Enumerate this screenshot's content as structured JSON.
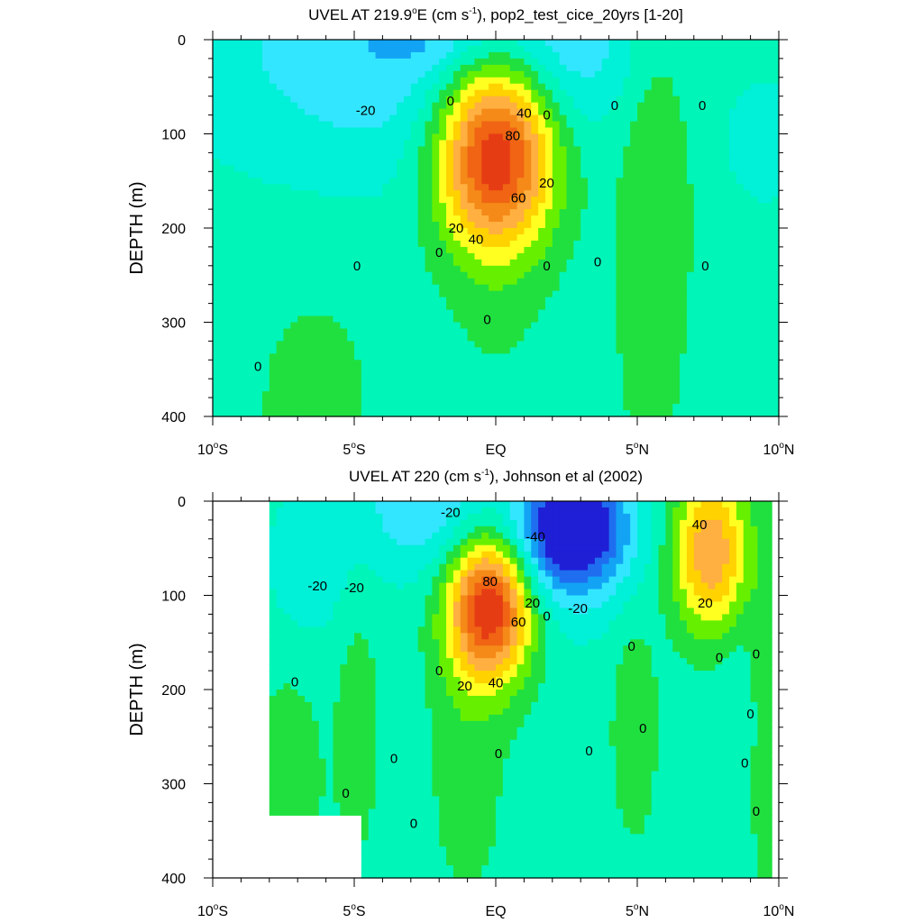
{
  "chart_data": [
    {
      "type": "heatmap",
      "title_main": "UVEL AT 219.9",
      "title_sup": "o",
      "title_mid": "E (cm s",
      "title_unit_sup": "-1",
      "title_end": "), pop2_test_cice_20yrs [1-20]",
      "ylabel": "DEPTH (m)",
      "xlim": [
        -10,
        10
      ],
      "ylim": [
        0,
        400
      ],
      "y_reversed": true,
      "xticks": [
        {
          "value": -10,
          "num": "10",
          "deg": "o",
          "hem": "S"
        },
        {
          "value": -5,
          "num": "5",
          "deg": "o",
          "hem": "S"
        },
        {
          "value": 0,
          "num": "EQ",
          "deg": "",
          "hem": ""
        },
        {
          "value": 5,
          "num": "5",
          "deg": "o",
          "hem": "N"
        },
        {
          "value": 10,
          "num": "10",
          "deg": "o",
          "hem": "N"
        }
      ],
      "yticks": [
        0,
        100,
        200,
        300,
        400
      ],
      "contour_interval": 10,
      "contour_labels": [
        {
          "text": "-20",
          "x": -4.6,
          "y": 75
        },
        {
          "text": "0",
          "x": -1.6,
          "y": 65
        },
        {
          "text": "40",
          "x": 1.0,
          "y": 78
        },
        {
          "text": "0",
          "x": 1.8,
          "y": 80
        },
        {
          "text": "80",
          "x": 0.6,
          "y": 102
        },
        {
          "text": "20",
          "x": 1.8,
          "y": 152
        },
        {
          "text": "60",
          "x": 0.8,
          "y": 168
        },
        {
          "text": "20",
          "x": -1.4,
          "y": 200
        },
        {
          "text": "40",
          "x": -0.7,
          "y": 212
        },
        {
          "text": "0",
          "x": -2.0,
          "y": 226
        },
        {
          "text": "0",
          "x": 1.8,
          "y": 240
        },
        {
          "text": "0",
          "x": -4.9,
          "y": 240
        },
        {
          "text": "0",
          "x": 3.6,
          "y": 236
        },
        {
          "text": "0",
          "x": 7.4,
          "y": 240
        },
        {
          "text": "0",
          "x": 4.2,
          "y": 70
        },
        {
          "text": "0",
          "x": 7.3,
          "y": 70
        },
        {
          "text": "0",
          "x": -0.3,
          "y": 297
        },
        {
          "text": "0",
          "x": -8.4,
          "y": 347
        }
      ],
      "sources": [
        {
          "x": 0.0,
          "y": 120,
          "amp": 92,
          "sx": 1.45,
          "sy": 72
        },
        {
          "x": -3.5,
          "y": 5,
          "amp": -24,
          "sx": 5.0,
          "sy": 100
        },
        {
          "x": 2.5,
          "y": 5,
          "amp": -14,
          "sx": 1.8,
          "sy": 55
        },
        {
          "x": -2.0,
          "y": 0,
          "amp": -8,
          "sx": 1.5,
          "sy": 25
        },
        {
          "x": 9.5,
          "y": 110,
          "amp": -12,
          "sx": 0.9,
          "sy": 45
        },
        {
          "x": 5.6,
          "y": 130,
          "amp": 14,
          "sx": 0.9,
          "sy": 130
        },
        {
          "x": 5.4,
          "y": 380,
          "amp": 5,
          "sx": 1.2,
          "sy": 170
        },
        {
          "x": -6.4,
          "y": 390,
          "amp": 8,
          "sx": 1.8,
          "sy": 110
        },
        {
          "x": 0.0,
          "y": 320,
          "amp": 4,
          "sx": 1.4,
          "sy": 90
        }
      ],
      "base": -5
    },
    {
      "type": "heatmap",
      "title_main": "UVEL AT 220 (cm s",
      "title_unit_sup": "-1",
      "title_end": "), Johnson et al (2002)",
      "ylabel": "DEPTH (m)",
      "xlim": [
        -10,
        10
      ],
      "ylim": [
        0,
        400
      ],
      "y_reversed": true,
      "data_xlim": [
        -8,
        10
      ],
      "xticks": [
        {
          "value": -10,
          "num": "10",
          "deg": "o",
          "hem": "S"
        },
        {
          "value": -5,
          "num": "5",
          "deg": "o",
          "hem": "S"
        },
        {
          "value": 0,
          "num": "EQ",
          "deg": "",
          "hem": ""
        },
        {
          "value": 5,
          "num": "5",
          "deg": "o",
          "hem": "N"
        },
        {
          "value": 10,
          "num": "10",
          "deg": "o",
          "hem": "N"
        }
      ],
      "yticks": [
        0,
        100,
        200,
        300,
        400
      ],
      "contour_interval": 10,
      "contour_labels": [
        {
          "text": "-20",
          "x": -1.6,
          "y": 12
        },
        {
          "text": "-40",
          "x": 1.4,
          "y": 38
        },
        {
          "text": "40",
          "x": 7.2,
          "y": 25
        },
        {
          "text": "-20",
          "x": -6.3,
          "y": 90
        },
        {
          "text": "-20",
          "x": -5.0,
          "y": 92
        },
        {
          "text": "80",
          "x": -0.2,
          "y": 85
        },
        {
          "text": "20",
          "x": 1.3,
          "y": 108
        },
        {
          "text": "60",
          "x": 0.8,
          "y": 128
        },
        {
          "text": "-20",
          "x": 2.9,
          "y": 114
        },
        {
          "text": "20",
          "x": 7.4,
          "y": 108
        },
        {
          "text": "0",
          "x": 1.8,
          "y": 122
        },
        {
          "text": "0",
          "x": 4.8,
          "y": 154
        },
        {
          "text": "0",
          "x": 7.9,
          "y": 166
        },
        {
          "text": "0",
          "x": 9.2,
          "y": 162
        },
        {
          "text": "0",
          "x": -2.0,
          "y": 180
        },
        {
          "text": "0",
          "x": -7.1,
          "y": 192
        },
        {
          "text": "20",
          "x": -1.1,
          "y": 196
        },
        {
          "text": "40",
          "x": 0.0,
          "y": 193
        },
        {
          "text": "0",
          "x": 9.0,
          "y": 226
        },
        {
          "text": "0",
          "x": 5.2,
          "y": 241
        },
        {
          "text": "0",
          "x": 0.1,
          "y": 268
        },
        {
          "text": "0",
          "x": 3.3,
          "y": 265
        },
        {
          "text": "0",
          "x": -3.6,
          "y": 273
        },
        {
          "text": "0",
          "x": 8.8,
          "y": 278
        },
        {
          "text": "0",
          "x": -5.3,
          "y": 310
        },
        {
          "text": "0",
          "x": 9.2,
          "y": 329
        },
        {
          "text": "0",
          "x": -2.9,
          "y": 342
        }
      ],
      "sources": [
        {
          "x": -0.2,
          "y": 110,
          "amp": 92,
          "sx": 1.05,
          "sy": 55
        },
        {
          "x": 2.8,
          "y": 25,
          "amp": -58,
          "sx": 1.3,
          "sy": 45
        },
        {
          "x": 1.5,
          "y": 60,
          "amp": -18,
          "sx": 2.2,
          "sy": 60
        },
        {
          "x": -2.5,
          "y": 5,
          "amp": -22,
          "sx": 1.8,
          "sy": 50
        },
        {
          "x": -6.5,
          "y": 70,
          "amp": -12,
          "sx": 1.2,
          "sy": 60
        },
        {
          "x": 7.6,
          "y": 55,
          "amp": 55,
          "sx": 0.95,
          "sy": 60
        },
        {
          "x": 4.9,
          "y": 240,
          "amp": 14,
          "sx": 0.55,
          "sy": 80
        },
        {
          "x": -4.9,
          "y": 230,
          "amp": 10,
          "sx": 0.6,
          "sy": 120
        },
        {
          "x": -7.3,
          "y": 300,
          "amp": 12,
          "sx": 0.8,
          "sy": 90
        },
        {
          "x": -1.0,
          "y": 270,
          "amp": 10,
          "sx": 1.0,
          "sy": 120
        },
        {
          "x": 9.4,
          "y": 270,
          "amp": 10,
          "sx": 0.35,
          "sy": 150
        },
        {
          "x": 8.4,
          "y": 240,
          "amp": -5,
          "sx": 0.6,
          "sy": 100
        }
      ],
      "base": -5,
      "missing": [
        {
          "x0": -10,
          "x1": -8,
          "y0": 0,
          "y1": 400
        },
        {
          "x0": -8,
          "x1": -4.8,
          "y0": 335,
          "y1": 400
        },
        {
          "x0": 9.8,
          "x1": 10,
          "y0": 0,
          "y1": 400
        }
      ]
    }
  ]
}
